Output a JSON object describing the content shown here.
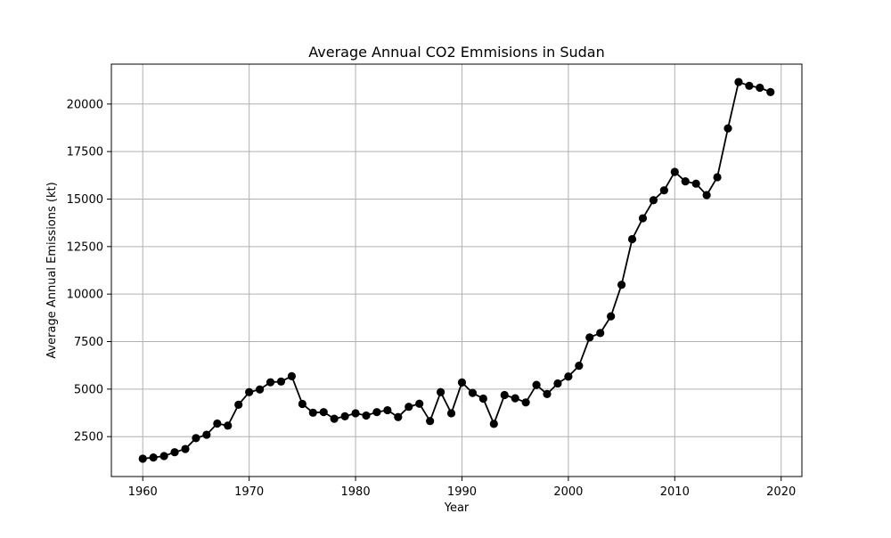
{
  "chart_data": {
    "type": "line",
    "title": "Average Annual CO2 Emmisions in Sudan",
    "xlabel": "Year",
    "ylabel": "Average Annual Emissions (kt)",
    "xlim": [
      1957.05,
      2021.95
    ],
    "ylim": [
      400,
      22100
    ],
    "x_ticks": [
      1960,
      1970,
      1980,
      1990,
      2000,
      2010,
      2020
    ],
    "y_ticks": [
      2500,
      5000,
      7500,
      10000,
      12500,
      15000,
      17500,
      20000
    ],
    "grid": true,
    "line_color": "#000000",
    "marker": "circle",
    "series": [
      {
        "x": [
          1960,
          1961,
          1962,
          1963,
          1964,
          1965,
          1966,
          1967,
          1968,
          1969,
          1970,
          1971,
          1972,
          1973,
          1974,
          1975,
          1976,
          1977,
          1978,
          1979,
          1980,
          1981,
          1982,
          1983,
          1984,
          1985,
          1986,
          1987,
          1988,
          1989,
          1990,
          1991,
          1992,
          1993,
          1994,
          1995,
          1996,
          1997,
          1998,
          1999,
          2000,
          2001,
          2002,
          2003,
          2004,
          2005,
          2006,
          2007,
          2008,
          2009,
          2010,
          2011,
          2012,
          2013,
          2014,
          2015,
          2016,
          2017,
          2018,
          2019
        ],
        "y": [
          1340,
          1400,
          1480,
          1680,
          1850,
          2420,
          2600,
          3190,
          3080,
          4180,
          4840,
          4980,
          5360,
          5400,
          5680,
          4220,
          3760,
          3790,
          3440,
          3570,
          3730,
          3610,
          3790,
          3890,
          3530,
          4070,
          4230,
          3320,
          4840,
          3730,
          5350,
          4800,
          4500,
          3170,
          4690,
          4520,
          4300,
          5220,
          4740,
          5300,
          5660,
          6230,
          7720,
          7950,
          8830,
          10490,
          12890,
          13990,
          14940,
          15460,
          16430,
          15930,
          15810,
          15210,
          16150,
          18720,
          21160,
          20960,
          20860,
          20630
        ]
      }
    ]
  }
}
